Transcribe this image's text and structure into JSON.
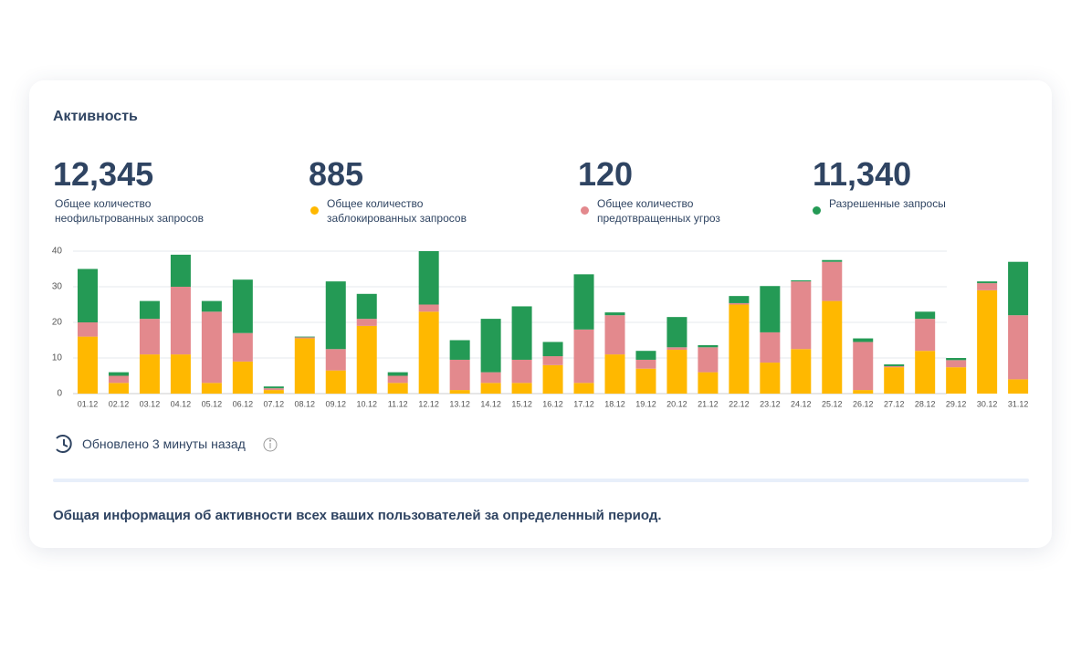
{
  "header": {
    "title": "Активность"
  },
  "stats": [
    {
      "value": "12,345",
      "label": "Общее количество неофильтрованных запросов"
    },
    {
      "value": "885"
    },
    {
      "value": "120"
    },
    {
      "value": "11,340"
    }
  ],
  "chart_data": {
    "type": "stacked_bar",
    "categories": [
      "01.12",
      "02.12",
      "03.12",
      "04.12",
      "05.12",
      "06.12",
      "07.12",
      "08.12",
      "09.12",
      "10.12",
      "11.12",
      "12.12",
      "13.12",
      "14.12",
      "15.12",
      "16.12",
      "17.12",
      "18.12",
      "19.12",
      "20.12",
      "21.12",
      "22.12",
      "23.12",
      "24.12",
      "25.12",
      "26.12",
      "27.12",
      "28.12",
      "29.12",
      "30.12",
      "31.12"
    ],
    "series": [
      {
        "name": "Общее количество заблокированных запросов",
        "color": "#ffb800",
        "values": [
          16,
          3,
          11,
          11,
          3,
          9,
          1,
          15.5,
          6.5,
          19,
          3,
          23,
          1,
          3,
          3,
          8,
          3,
          11,
          7,
          12.3,
          6,
          25,
          8.7,
          12.5,
          26,
          1,
          7.4,
          12,
          7.4,
          29,
          4
        ]
      },
      {
        "name": "Общее количество предотвращенных угроз",
        "color": "#e3898d",
        "values": [
          4,
          2,
          10,
          19,
          20,
          8,
          0.5,
          0.3,
          6,
          2,
          2,
          2,
          8.5,
          3,
          6.5,
          2.5,
          15,
          11,
          2.5,
          0.7,
          7,
          0.4,
          8.5,
          19,
          11,
          13.5,
          0.3,
          9,
          2,
          2,
          18
        ]
      },
      {
        "name": "Разрешенные запросы",
        "color": "#249a55",
        "values": [
          15,
          1,
          5,
          9,
          3,
          15,
          0.5,
          0.2,
          19,
          7,
          1,
          15,
          5.5,
          15,
          15,
          4,
          15.5,
          0.8,
          2.5,
          8.5,
          0.6,
          2,
          13,
          0.3,
          0.5,
          1,
          0.5,
          2,
          0.6,
          0.5,
          15
        ]
      }
    ],
    "ylim": [
      0,
      40
    ],
    "yticks": [
      0,
      10,
      20,
      30,
      40
    ],
    "grid": true
  },
  "status": {
    "updated": "Обновлено 3 минуты назад"
  },
  "footer": {
    "text": "Общая информация об активности всех ваших пользователей за определенный период."
  }
}
